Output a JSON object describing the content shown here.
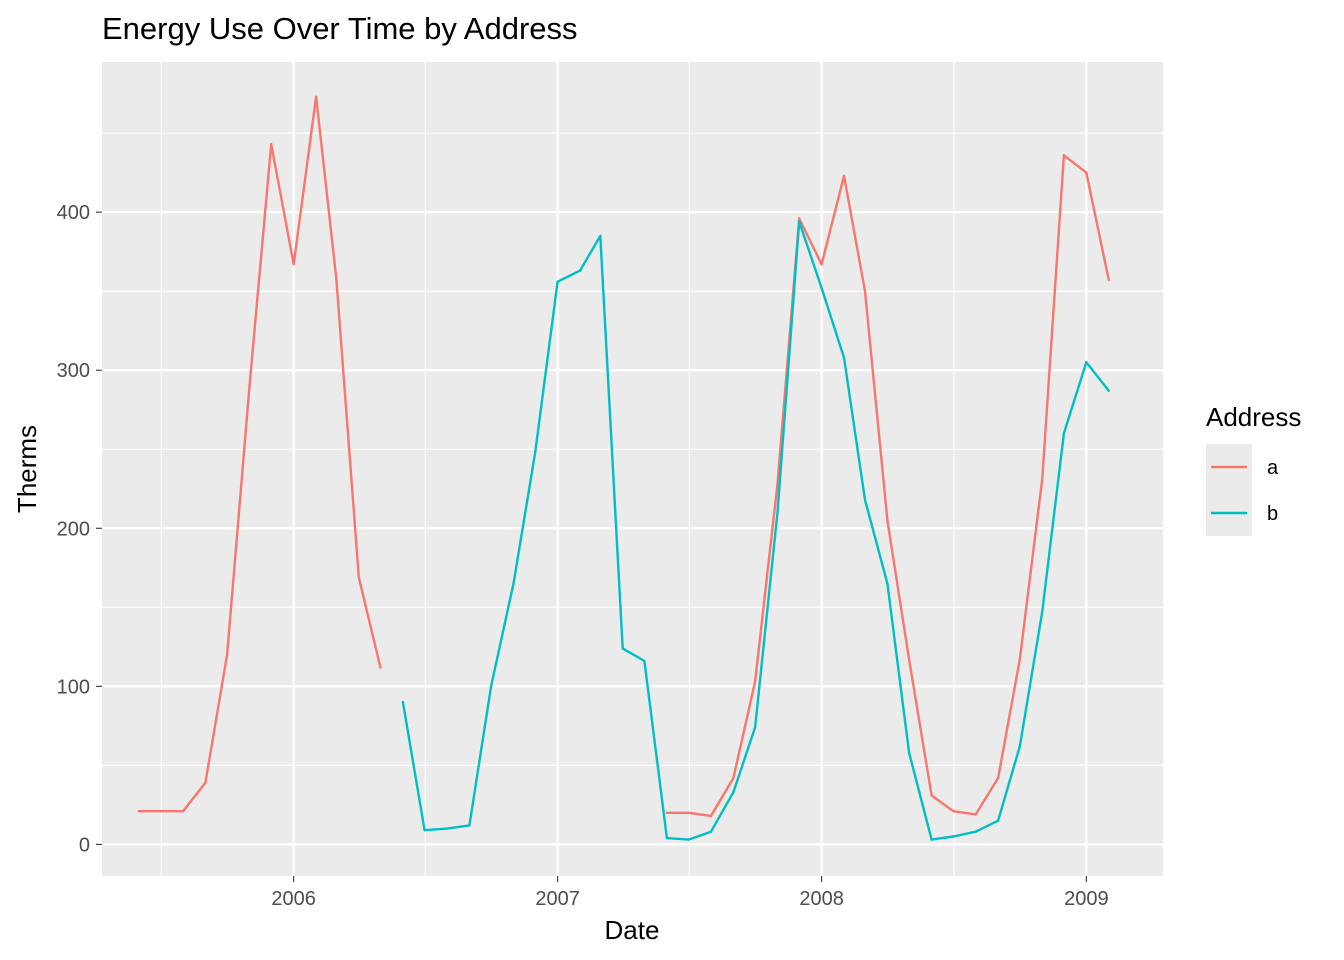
{
  "chart_data": {
    "type": "line",
    "title": "Energy Use Over Time by Address",
    "xlabel": "Date",
    "ylabel": "Therms",
    "xlim": [
      "2005-04-11",
      "2009-04-17"
    ],
    "ylim": [
      -20,
      495
    ],
    "x_ticks": [
      {
        "label": "2006",
        "date": "2006-01-01"
      },
      {
        "label": "2007",
        "date": "2007-01-01"
      },
      {
        "label": "2008",
        "date": "2008-01-01"
      },
      {
        "label": "2009",
        "date": "2009-01-01"
      }
    ],
    "x_minor_ticks": [
      "2005-07-02",
      "2006-07-02",
      "2007-07-02",
      "2008-07-02"
    ],
    "y_ticks": [
      0,
      100,
      200,
      300,
      400
    ],
    "y_minor_ticks": [
      50,
      150,
      250,
      350,
      450
    ],
    "grid": true,
    "legend": {
      "title": "Address",
      "position": "right"
    },
    "series": [
      {
        "name": "a",
        "color": "#F8766D",
        "points": [
          [
            "2005-06-01",
            21
          ],
          [
            "2005-07-01",
            21
          ],
          [
            "2005-08-01",
            21
          ],
          [
            "2005-09-01",
            39
          ],
          [
            "2005-10-01",
            120
          ],
          [
            "2005-11-01",
            290
          ],
          [
            "2005-12-01",
            443
          ],
          [
            "2006-01-01",
            367
          ],
          [
            "2006-02-01",
            473
          ],
          [
            "2006-03-01",
            358
          ],
          [
            "2006-04-01",
            169
          ],
          [
            "2006-05-01",
            112
          ],
          null,
          [
            "2007-06-01",
            20
          ],
          [
            "2007-07-01",
            20
          ],
          [
            "2007-08-01",
            18
          ],
          [
            "2007-09-01",
            42
          ],
          [
            "2007-10-01",
            103
          ],
          [
            "2007-11-01",
            228
          ],
          [
            "2007-12-01",
            396
          ],
          [
            "2008-01-01",
            367
          ],
          [
            "2008-02-01",
            423
          ],
          [
            "2008-03-01",
            350
          ],
          [
            "2008-04-01",
            205
          ],
          [
            "2008-05-01",
            117
          ],
          [
            "2008-06-01",
            31
          ],
          [
            "2008-07-01",
            21
          ],
          [
            "2008-08-01",
            19
          ],
          [
            "2008-09-01",
            42
          ],
          [
            "2008-10-01",
            117
          ],
          [
            "2008-11-01",
            231
          ],
          [
            "2008-12-01",
            436
          ],
          [
            "2009-01-01",
            425
          ],
          [
            "2009-02-01",
            357
          ]
        ]
      },
      {
        "name": "b",
        "color": "#00BFC4",
        "points": [
          [
            "2006-06-01",
            90
          ],
          [
            "2006-07-01",
            9
          ],
          [
            "2006-08-01",
            10
          ],
          [
            "2006-09-01",
            12
          ],
          [
            "2006-10-01",
            100
          ],
          [
            "2006-11-01",
            165
          ],
          [
            "2006-12-01",
            248
          ],
          [
            "2007-01-01",
            356
          ],
          [
            "2007-02-01",
            363
          ],
          [
            "2007-03-01",
            385
          ],
          [
            "2007-04-01",
            124
          ],
          [
            "2007-05-01",
            116
          ],
          [
            "2007-06-01",
            4
          ],
          [
            "2007-07-01",
            3
          ],
          [
            "2007-08-01",
            8
          ],
          [
            "2007-09-01",
            33
          ],
          [
            "2007-10-01",
            74
          ],
          [
            "2007-11-01",
            210
          ],
          [
            "2007-12-01",
            394
          ],
          [
            "2008-01-01",
            352
          ],
          [
            "2008-02-01",
            308
          ],
          [
            "2008-03-01",
            218
          ],
          [
            "2008-04-01",
            165
          ],
          [
            "2008-05-01",
            58
          ],
          [
            "2008-06-01",
            3
          ],
          [
            "2008-07-01",
            5
          ],
          [
            "2008-08-01",
            8
          ],
          [
            "2008-09-01",
            15
          ],
          [
            "2008-10-01",
            62
          ],
          [
            "2008-11-01",
            147
          ],
          [
            "2008-12-01",
            260
          ],
          [
            "2009-01-01",
            305
          ],
          [
            "2009-02-01",
            287
          ]
        ]
      }
    ]
  }
}
